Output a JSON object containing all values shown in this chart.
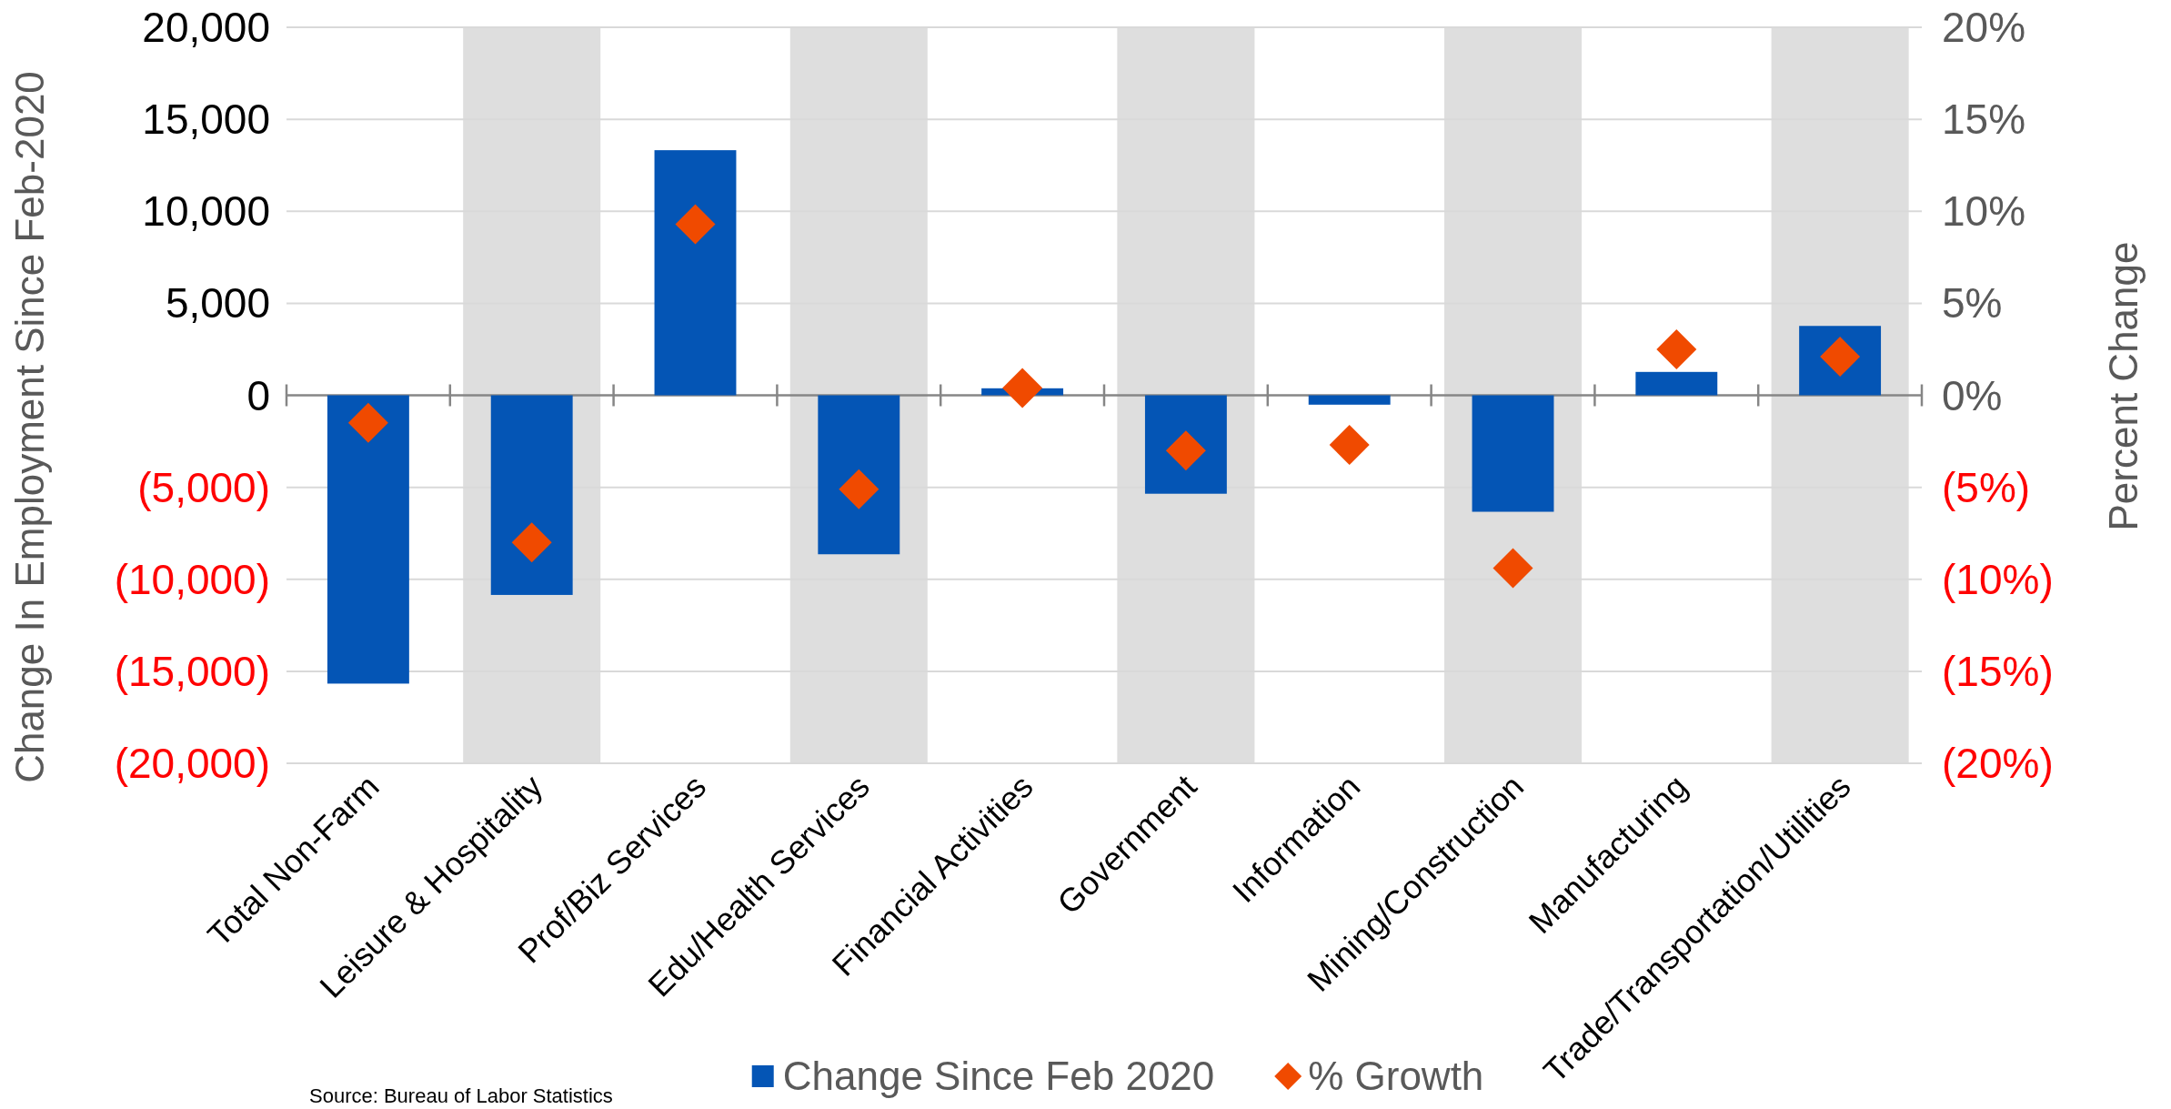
{
  "chart_data": {
    "type": "bar",
    "ylabel": "Change In Employment Since Feb-2020",
    "y2label": "Percent Change",
    "categories": [
      "Total Non-Farm",
      "Leisure & Hospitality",
      "Prof/Biz Services",
      "Edu/Health Services",
      "Financial Activities",
      "Government",
      "Information",
      "Mining/Construction",
      "Manufacturing",
      "Trade/Transportation/Utilities"
    ],
    "series": [
      {
        "name": "Change Since Feb 2020",
        "color": "#0455b5",
        "values": [
          -15670,
          -10850,
          13320,
          -8640,
          380,
          -5350,
          -510,
          -6330,
          1270,
          3770
        ]
      },
      {
        "name": "% Growth",
        "type": "scatter",
        "axis": "y2",
        "marker": "diamond",
        "color": "#f04a00",
        "values": [
          -1.5,
          -8.0,
          9.3,
          -5.1,
          0.4,
          -3.0,
          -2.7,
          -9.4,
          2.5,
          2.1
        ]
      }
    ],
    "ylim": [
      -20000,
      20000
    ],
    "yticks": [
      {
        "value": -20000,
        "label": "(20,000)"
      },
      {
        "value": -15000,
        "label": "(15,000)"
      },
      {
        "value": -10000,
        "label": "(10,000)"
      },
      {
        "value": -5000,
        "label": "(5,000)"
      },
      0,
      {
        "value": 5000,
        "label": "5,000"
      },
      {
        "value": 10000,
        "label": "10,000"
      },
      {
        "value": 15000,
        "label": "15,000"
      },
      {
        "value": 20000,
        "label": "20,000"
      }
    ],
    "y2lim": [
      -20,
      20
    ],
    "y2ticks": [
      {
        "value": -20,
        "label": "(20%)"
      },
      {
        "value": -15,
        "label": "(15%)"
      },
      {
        "value": -10,
        "label": "(10%)"
      },
      {
        "value": -5,
        "label": "(5%)"
      },
      {
        "value": 0,
        "label": "0%"
      },
      {
        "value": 5,
        "label": "5%"
      },
      {
        "value": 10,
        "label": "10%"
      },
      {
        "value": 15,
        "label": "15%"
      },
      {
        "value": 20,
        "label": "20%"
      }
    ],
    "bands": [
      {
        "axis": "x",
        "from": "Leisure & Hospitality",
        "to": "Leisure & Hospitality",
        "color": "#dedede"
      },
      {
        "axis": "x",
        "from": "Edu/Health Services",
        "to": "Edu/Health Services",
        "color": "#dedede"
      },
      {
        "axis": "x",
        "from": "Government",
        "to": "Government",
        "color": "#dedede"
      },
      {
        "axis": "x",
        "from": "Mining/Construction",
        "to": "Mining/Construction",
        "color": "#dedede"
      },
      {
        "axis": "x",
        "from": "Trade/Transportation/Utilities",
        "to": "Trade/Transportation/Utilities",
        "color": "#dedede"
      }
    ],
    "grid": "y",
    "legend": "bottom",
    "annotations": [
      "Source: Bureau of Labor Statistics"
    ]
  }
}
